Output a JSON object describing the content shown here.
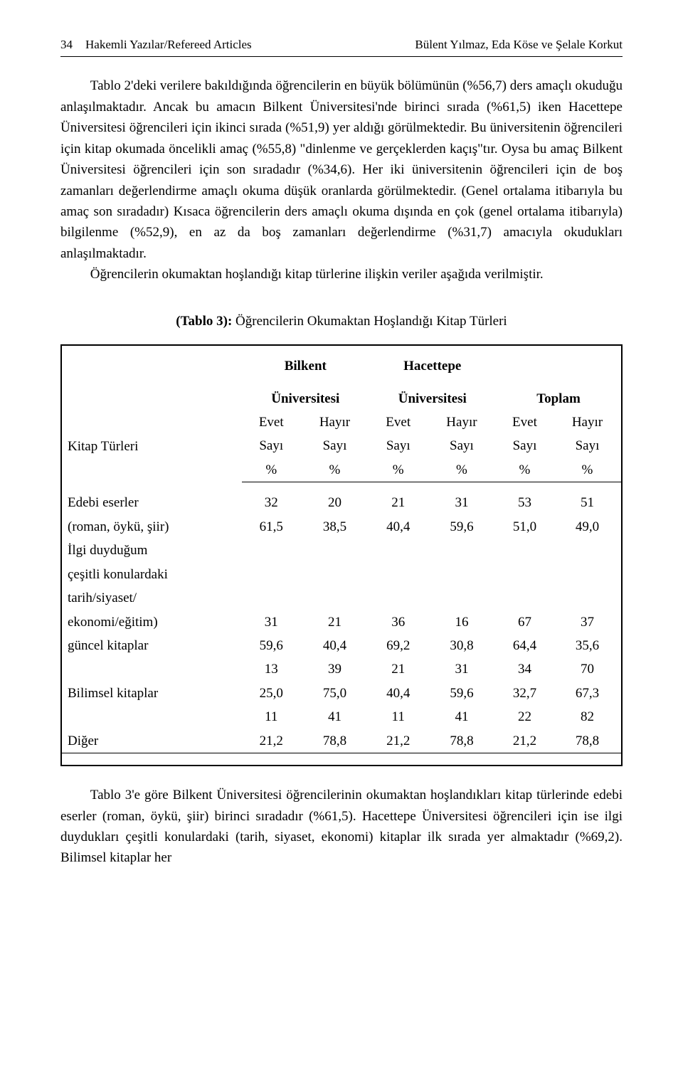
{
  "header": {
    "page_number": "34",
    "section": "Hakemli Yazılar/Refereed Articles",
    "authors": "Bülent Yılmaz, Eda Köse ve Şelale Korkut"
  },
  "paragraphs": {
    "p1": "Tablo 2'deki verilere bakıldığında öğrencilerin en büyük bölümünün (%56,7) ders amaçlı okuduğu anlaşılmaktadır. Ancak bu amacın Bilkent Üniversitesi'nde birinci sırada (%61,5) iken Hacettepe Üniversitesi öğrencileri için ikinci sırada (%51,9) yer aldığı görülmektedir. Bu üniversitenin öğrencileri için kitap okumada öncelikli amaç (%55,8) \"dinlenme ve gerçeklerden kaçış\"tır. Oysa bu amaç Bilkent Üniversitesi öğrencileri için son sıradadır (%34,6). Her iki üniversitenin öğrencileri için de boş zamanları değerlendirme amaçlı okuma düşük oranlarda görülmektedir. (Genel ortalama itibarıyla bu amaç son sıradadır) Kısaca öğrencilerin ders amaçlı okuma dışında en çok (genel ortalama itibarıyla) bilgilenme (%52,9), en az da boş zamanları değerlendirme (%31,7) amacıyla okudukları anlaşılmaktadır.",
    "p2": "Öğrencilerin okumaktan hoşlandığı kitap türlerine ilişkin veriler aşağıda  verilmiştir.",
    "p3": "Tablo 3'e göre Bilkent Üniversitesi öğrencilerinin okumaktan hoşlandıkları kitap türlerinde edebi eserler (roman, öykü, şiir) birinci sıradadır (%61,5). Hacettepe Üniversitesi öğrencileri için ise ilgi duydukları çeşitli konulardaki (tarih, siyaset, ekonomi) kitaplar ilk sırada yer almaktadır (%69,2). Bilimsel kitaplar her"
  },
  "table": {
    "caption_bold": "(Tablo 3):",
    "caption_rest": " Öğrencilerin Okumaktan Hoşlandığı Kitap Türleri",
    "col_group_labels": {
      "kitap": "Kitap Türleri",
      "bilkent": "Bilkent",
      "univ": "Üniversitesi",
      "hacettepe": "Hacettepe",
      "toplam": "Toplam"
    },
    "subhead": {
      "evet": "Evet",
      "hayir": "Hayır",
      "sayi": "Sayı",
      "pct": "%"
    },
    "rows": [
      {
        "labels": [
          "Edebi eserler",
          "(roman, öykü, şiir)"
        ],
        "cells": [
          [
            "32",
            "20",
            "21",
            "31",
            "53",
            "51"
          ],
          [
            "61,5",
            "38,5",
            "40,4",
            "59,6",
            "51,0",
            "49,0"
          ]
        ]
      },
      {
        "labels": [
          "İlgi duyduğum",
          "çeşitli  konulardaki",
          "tarih/siyaset/",
          "ekonomi/eğitim)",
          "güncel kitaplar",
          ""
        ],
        "cells": [
          [
            "",
            "",
            "",
            "",
            "",
            ""
          ],
          [
            "",
            "",
            "",
            "",
            "",
            ""
          ],
          [
            "",
            "",
            "",
            "",
            "",
            ""
          ],
          [
            "31",
            "21",
            "36",
            "16",
            "67",
            "37"
          ],
          [
            "59,6",
            "40,4",
            "69,2",
            "30,8",
            "64,4",
            "35,6"
          ],
          [
            "13",
            "39",
            "21",
            "31",
            "34",
            "70"
          ]
        ]
      },
      {
        "labels": [
          "Bilimsel kitaplar",
          ""
        ],
        "cells": [
          [
            "25,0",
            "75,0",
            "40,4",
            "59,6",
            "32,7",
            "67,3"
          ],
          [
            "11",
            "41",
            "11",
            "41",
            "22",
            "82"
          ]
        ]
      },
      {
        "labels": [
          "Diğer"
        ],
        "cells": [
          [
            "21,2",
            "78,8",
            "21,2",
            "78,8",
            "21,2",
            "78,8"
          ]
        ]
      }
    ]
  }
}
